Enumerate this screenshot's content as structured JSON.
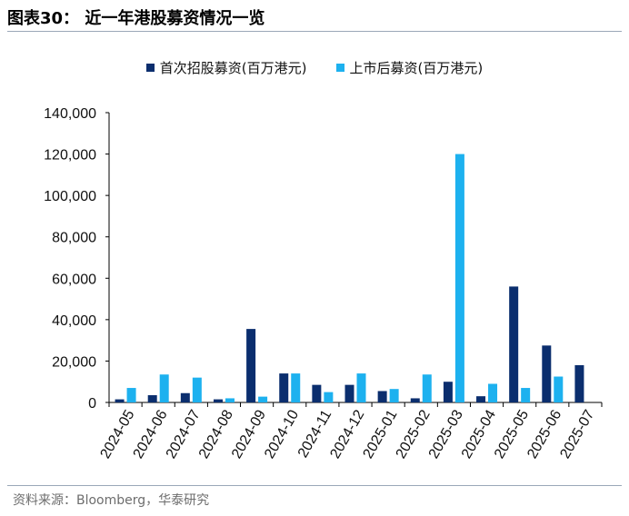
{
  "header": {
    "title": "图表30：  近一年港股募资情况一览"
  },
  "colors": {
    "ipo": "#0b2e6e",
    "follow_on": "#1db1ef",
    "axis": "#000000"
  },
  "legend": {
    "ipo_label": "首次招股募资(百万港元)",
    "follow_on_label": "上市后募资(百万港元)"
  },
  "chart_data": {
    "type": "bar",
    "title": "近一年港股募资情况一览",
    "xlabel": "",
    "ylabel": "",
    "ylim": [
      0,
      140000
    ],
    "yticks": [
      0,
      20000,
      40000,
      60000,
      80000,
      100000,
      120000,
      140000
    ],
    "ytick_labels": [
      "0",
      "20,000",
      "40,000",
      "60,000",
      "80,000",
      "100,000",
      "120,000",
      "140,000"
    ],
    "categories": [
      "2024-05",
      "2024-06",
      "2024-07",
      "2024-08",
      "2024-09",
      "2024-10",
      "2024-11",
      "2024-12",
      "2025-01",
      "2025-02",
      "2025-03",
      "2025-04",
      "2025-05",
      "2025-06",
      "2025-07"
    ],
    "series": [
      {
        "name": "首次招股募资(百万港元)",
        "values": [
          1500,
          3500,
          4500,
          1500,
          35500,
          14000,
          8500,
          8500,
          5500,
          2000,
          10000,
          3000,
          56000,
          27500,
          18000
        ]
      },
      {
        "name": "上市后募资(百万港元)",
        "values": [
          7000,
          13500,
          12000,
          2000,
          2800,
          14000,
          5000,
          14000,
          6500,
          13500,
          120000,
          9000,
          7000,
          12500,
          0
        ]
      }
    ],
    "grid": false,
    "legend_position": "top"
  },
  "footer": {
    "source": "资料来源：Bloomberg，华泰研究"
  }
}
